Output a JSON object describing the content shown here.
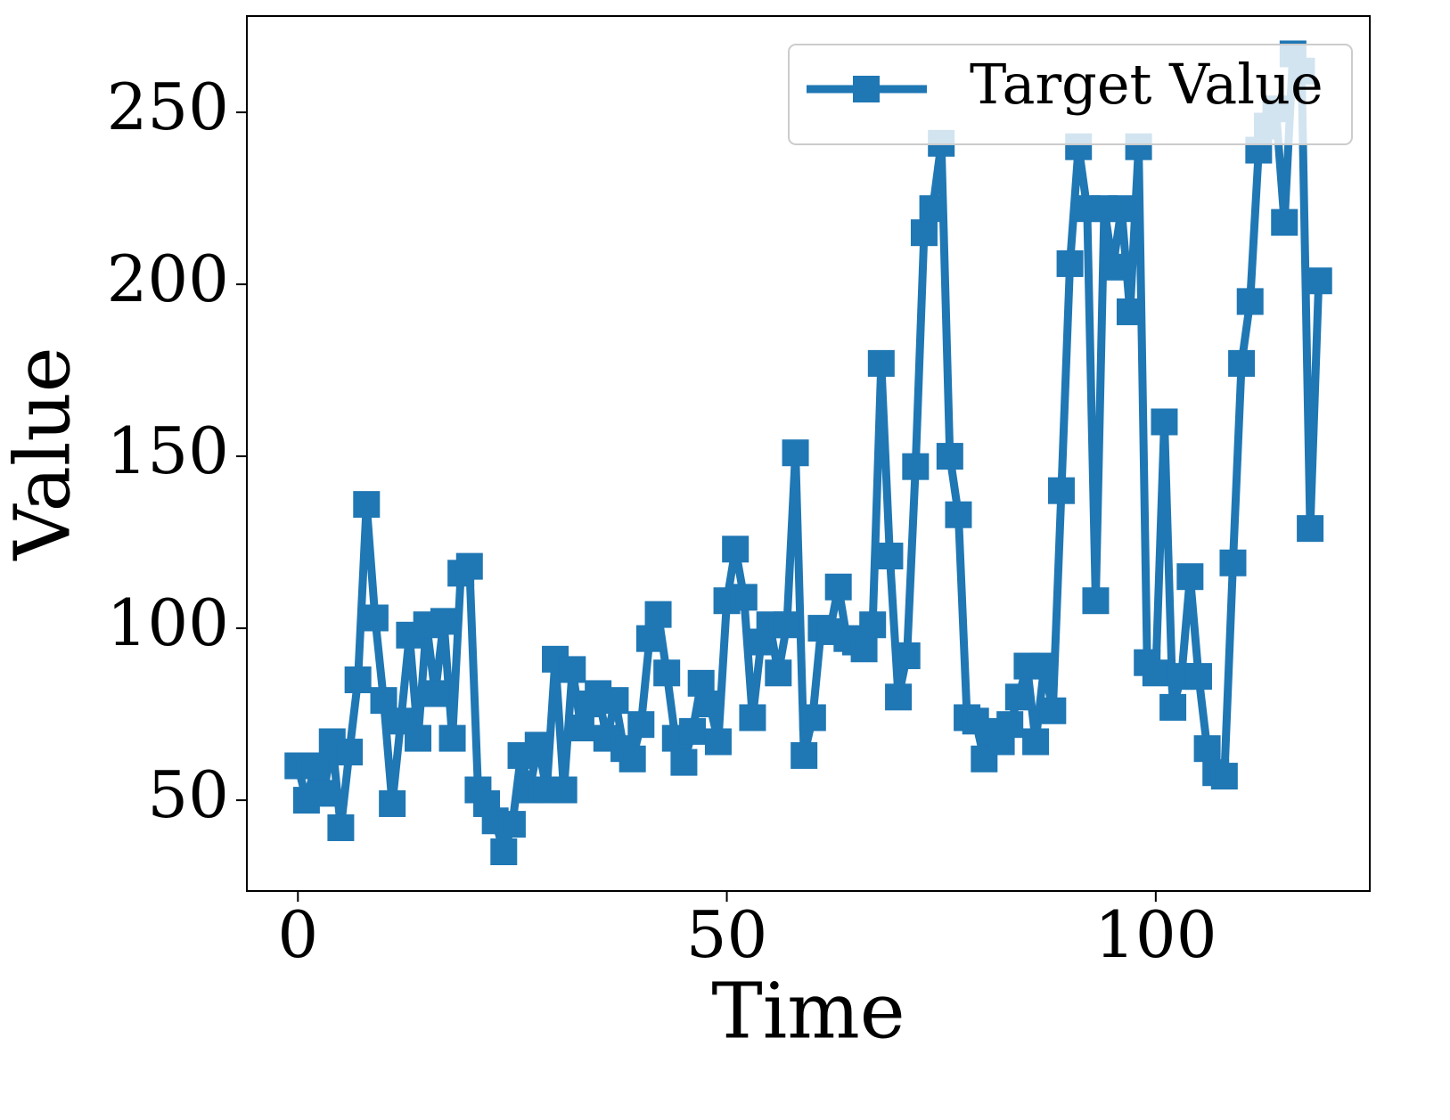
{
  "chart_data": {
    "type": "line",
    "xlabel": "Time",
    "ylabel": "Value",
    "x": [
      0,
      1,
      2,
      3,
      4,
      5,
      6,
      7,
      8,
      9,
      10,
      11,
      12,
      13,
      14,
      15,
      16,
      17,
      18,
      19,
      20,
      21,
      22,
      23,
      24,
      25,
      26,
      27,
      28,
      29,
      30,
      31,
      32,
      33,
      34,
      35,
      36,
      37,
      38,
      39,
      40,
      41,
      42,
      43,
      44,
      45,
      46,
      47,
      48,
      49,
      50,
      51,
      52,
      53,
      54,
      55,
      56,
      57,
      58,
      59,
      60,
      61,
      62,
      63,
      64,
      65,
      66,
      67,
      68,
      69,
      70,
      71,
      72,
      73,
      74,
      75,
      76,
      77,
      78,
      79,
      80,
      81,
      82,
      83,
      84,
      85,
      86,
      87,
      88,
      89,
      90,
      91,
      92,
      93,
      94,
      95,
      96,
      97,
      98,
      99,
      100,
      101,
      102,
      103,
      104,
      105,
      106,
      107,
      108,
      109,
      110,
      111,
      112,
      113,
      114,
      115,
      116,
      117,
      118,
      119
    ],
    "series": [
      {
        "name": "Target Value",
        "color": "#1f77b4",
        "values": [
          60,
          50,
          60,
          52,
          67,
          42,
          64,
          85,
          136,
          103,
          79,
          49,
          73,
          98,
          68,
          101,
          81,
          102,
          68,
          116,
          118,
          53,
          49,
          44,
          35,
          43,
          63,
          53,
          66,
          53,
          91,
          53,
          88,
          71,
          78,
          81,
          68,
          79,
          65,
          62,
          72,
          97,
          104,
          87,
          68,
          61,
          70,
          84,
          78,
          67,
          108,
          123,
          109,
          74,
          96,
          101,
          87,
          101,
          151,
          63,
          74,
          100,
          99,
          112,
          97,
          96,
          94,
          101,
          177,
          121,
          80,
          92,
          147,
          215,
          222,
          241,
          150,
          133,
          74,
          73,
          62,
          70,
          67,
          72,
          80,
          89,
          67,
          89,
          76,
          140,
          206,
          240,
          222,
          108,
          222,
          205,
          222,
          192,
          240,
          90,
          87,
          160,
          77,
          86,
          115,
          86,
          65,
          58,
          57,
          119,
          177,
          195,
          239,
          246,
          251,
          218,
          267,
          262,
          129,
          201
        ]
      }
    ],
    "xlim": [
      -5.95,
      124.95
    ],
    "ylim": [
      23.6,
      278
    ],
    "xticks": [
      0,
      50,
      100
    ],
    "yticks": [
      50,
      100,
      150,
      200,
      250
    ],
    "grid": false,
    "legend": "upper right"
  }
}
